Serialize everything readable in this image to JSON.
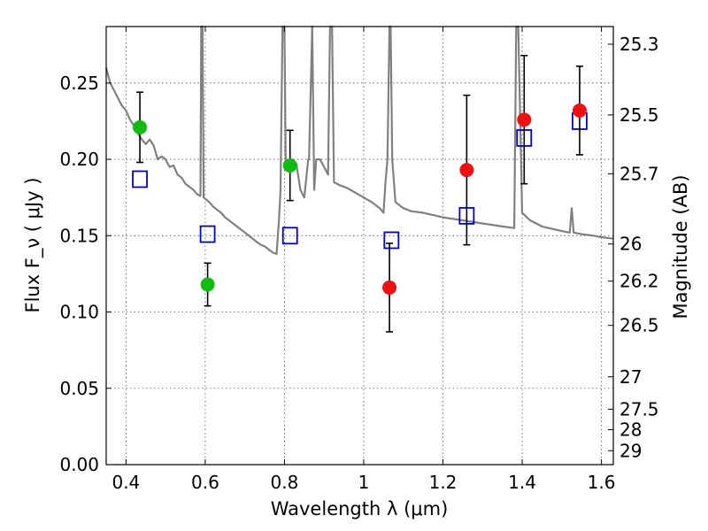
{
  "chart_data": {
    "type": "scatter",
    "xlabel": "Wavelength  λ (μm)",
    "ylabel": "Flux  F_ν  ( μJy )",
    "y2label": "Magnitude (AB)",
    "xlim": [
      0.35,
      1.63
    ],
    "ylim": [
      0.0,
      0.287
    ],
    "grid": true,
    "x_ticks": [
      {
        "value": 0.4,
        "label": "0.4"
      },
      {
        "value": 0.6,
        "label": "0.6"
      },
      {
        "value": 0.8,
        "label": "0.8"
      },
      {
        "value": 1.0,
        "label": "1"
      },
      {
        "value": 1.2,
        "label": "1.2"
      },
      {
        "value": 1.4,
        "label": "1.4"
      },
      {
        "value": 1.6,
        "label": "1.6"
      }
    ],
    "y_ticks": [
      {
        "value": 0.0,
        "label": "0.00"
      },
      {
        "value": 0.05,
        "label": "0.05"
      },
      {
        "value": 0.1,
        "label": "0.10"
      },
      {
        "value": 0.15,
        "label": "0.15"
      },
      {
        "value": 0.2,
        "label": "0.20"
      },
      {
        "value": 0.25,
        "label": "0.25"
      }
    ],
    "magnitude_ticks": [
      {
        "mag": 25.3,
        "label": "25.3"
      },
      {
        "mag": 25.5,
        "label": "25.5"
      },
      {
        "mag": 25.7,
        "label": "25.7"
      },
      {
        "mag": 26.0,
        "label": "26"
      },
      {
        "mag": 26.2,
        "label": "26.2"
      },
      {
        "mag": 26.5,
        "label": "26.5"
      },
      {
        "mag": 27.0,
        "label": "27"
      },
      {
        "mag": 27.5,
        "label": "27.5"
      },
      {
        "mag": 28.0,
        "label": "28"
      },
      {
        "mag": 29.0,
        "label": "29"
      }
    ],
    "observed_green": [
      {
        "x": 0.435,
        "y": 0.221,
        "err": 0.023
      },
      {
        "x": 0.606,
        "y": 0.118,
        "err": 0.014
      },
      {
        "x": 0.814,
        "y": 0.196,
        "err": 0.023
      }
    ],
    "observed_red": [
      {
        "x": 1.065,
        "y": 0.116,
        "err": 0.029
      },
      {
        "x": 1.26,
        "y": 0.193,
        "err": 0.049
      },
      {
        "x": 1.405,
        "y": 0.226,
        "err": 0.042
      },
      {
        "x": 1.545,
        "y": 0.232,
        "err": 0.029
      }
    ],
    "model_photometry": [
      {
        "x": 0.435,
        "y": 0.187
      },
      {
        "x": 0.606,
        "y": 0.151
      },
      {
        "x": 0.814,
        "y": 0.15
      },
      {
        "x": 1.07,
        "y": 0.147
      },
      {
        "x": 1.26,
        "y": 0.163
      },
      {
        "x": 1.405,
        "y": 0.214
      },
      {
        "x": 1.545,
        "y": 0.225
      }
    ],
    "model_spectrum": [
      [
        0.35,
        0.26
      ],
      [
        0.36,
        0.25
      ],
      [
        0.37,
        0.245
      ],
      [
        0.38,
        0.24
      ],
      [
        0.39,
        0.235
      ],
      [
        0.4,
        0.232
      ],
      [
        0.41,
        0.226
      ],
      [
        0.42,
        0.222
      ],
      [
        0.43,
        0.217
      ],
      [
        0.44,
        0.213
      ],
      [
        0.45,
        0.21
      ],
      [
        0.46,
        0.213
      ],
      [
        0.47,
        0.209
      ],
      [
        0.48,
        0.2
      ],
      [
        0.49,
        0.202
      ],
      [
        0.5,
        0.2
      ],
      [
        0.51,
        0.195
      ],
      [
        0.52,
        0.196
      ],
      [
        0.53,
        0.19
      ],
      [
        0.54,
        0.188
      ],
      [
        0.55,
        0.184
      ],
      [
        0.56,
        0.182
      ],
      [
        0.57,
        0.18
      ],
      [
        0.58,
        0.177
      ],
      [
        0.588,
        0.176
      ],
      [
        0.59,
        0.3
      ],
      [
        0.593,
        0.3
      ],
      [
        0.596,
        0.175
      ],
      [
        0.61,
        0.172
      ],
      [
        0.62,
        0.169
      ],
      [
        0.63,
        0.167
      ],
      [
        0.64,
        0.165
      ],
      [
        0.65,
        0.162
      ],
      [
        0.66,
        0.16
      ],
      [
        0.67,
        0.158
      ],
      [
        0.68,
        0.156
      ],
      [
        0.69,
        0.154
      ],
      [
        0.7,
        0.152
      ],
      [
        0.71,
        0.15
      ],
      [
        0.72,
        0.148
      ],
      [
        0.73,
        0.146
      ],
      [
        0.74,
        0.144
      ],
      [
        0.75,
        0.143
      ],
      [
        0.76,
        0.141
      ],
      [
        0.77,
        0.139
      ],
      [
        0.78,
        0.138
      ],
      [
        0.786,
        0.16
      ],
      [
        0.79,
        0.18
      ],
      [
        0.795,
        0.3
      ],
      [
        0.8,
        0.3
      ],
      [
        0.803,
        0.2
      ],
      [
        0.81,
        0.198
      ],
      [
        0.82,
        0.2
      ],
      [
        0.83,
        0.197
      ],
      [
        0.84,
        0.18
      ],
      [
        0.85,
        0.175
      ],
      [
        0.86,
        0.2
      ],
      [
        0.862,
        0.2
      ],
      [
        0.87,
        0.3
      ],
      [
        0.875,
        0.18
      ],
      [
        0.88,
        0.2
      ],
      [
        0.89,
        0.2
      ],
      [
        0.9,
        0.195
      ],
      [
        0.91,
        0.19
      ],
      [
        0.915,
        0.3
      ],
      [
        0.92,
        0.3
      ],
      [
        0.925,
        0.185
      ],
      [
        0.94,
        0.183
      ],
      [
        0.96,
        0.181
      ],
      [
        0.98,
        0.178
      ],
      [
        1.0,
        0.175
      ],
      [
        1.02,
        0.172
      ],
      [
        1.04,
        0.168
      ],
      [
        1.05,
        0.165
      ],
      [
        1.055,
        0.185
      ],
      [
        1.06,
        0.2
      ],
      [
        1.065,
        0.3
      ],
      [
        1.068,
        0.3
      ],
      [
        1.072,
        0.2
      ],
      [
        1.08,
        0.172
      ],
      [
        1.1,
        0.168
      ],
      [
        1.12,
        0.166
      ],
      [
        1.15,
        0.165
      ],
      [
        1.2,
        0.162
      ],
      [
        1.25,
        0.16
      ],
      [
        1.3,
        0.158
      ],
      [
        1.35,
        0.156
      ],
      [
        1.38,
        0.155
      ],
      [
        1.385,
        0.3
      ],
      [
        1.39,
        0.3
      ],
      [
        1.4,
        0.165
      ],
      [
        1.42,
        0.16
      ],
      [
        1.45,
        0.156
      ],
      [
        1.5,
        0.153
      ],
      [
        1.52,
        0.152
      ],
      [
        1.525,
        0.168
      ],
      [
        1.53,
        0.152
      ],
      [
        1.55,
        0.151
      ],
      [
        1.58,
        0.15
      ],
      [
        1.6,
        0.149
      ],
      [
        1.63,
        0.148
      ]
    ],
    "colors": {
      "green_points": "#11bb11",
      "red_points": "#ee1111",
      "model_squares": "#0000cc",
      "spectrum": "#808080",
      "error_bars": "#000000",
      "grid": "#555555"
    }
  }
}
